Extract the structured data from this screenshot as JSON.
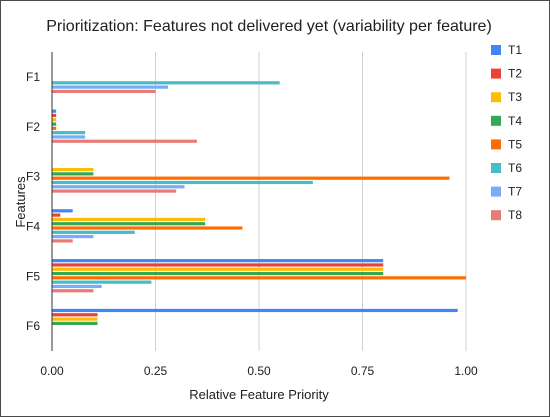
{
  "chart_data": {
    "type": "bar",
    "orientation": "horizontal",
    "title": "Prioritization: Features not delivered yet (variability per feature)",
    "xlabel": "Relative Feature Priority",
    "ylabel": "Features",
    "xlim": [
      0,
      1.0
    ],
    "xticks": [
      "0.00",
      "0.25",
      "0.50",
      "0.75",
      "1.00"
    ],
    "grid": "vertical",
    "legend_position": "right",
    "categories": [
      "F1",
      "F2",
      "F3",
      "F4",
      "F5",
      "F6"
    ],
    "series": [
      {
        "name": "T1",
        "color": "#4285F4",
        "values": [
          0,
          0.01,
          0,
          0.05,
          0.8,
          0.98
        ]
      },
      {
        "name": "T2",
        "color": "#EA4335",
        "values": [
          0,
          0.01,
          0,
          0.02,
          0.8,
          0.11
        ]
      },
      {
        "name": "T3",
        "color": "#FBBC04",
        "values": [
          0,
          0.01,
          0.1,
          0.37,
          0.8,
          0.11
        ]
      },
      {
        "name": "T4",
        "color": "#34A853",
        "values": [
          0,
          0.01,
          0.1,
          0.37,
          0.8,
          0.11
        ]
      },
      {
        "name": "T5",
        "color": "#FF6D01",
        "values": [
          0,
          0.01,
          0.96,
          0.46,
          1.0,
          0
        ]
      },
      {
        "name": "T6",
        "color": "#46BDC6",
        "values": [
          0.55,
          0.08,
          0.63,
          0.2,
          0.24,
          0
        ]
      },
      {
        "name": "T7",
        "color": "#7BAAF7",
        "values": [
          0.28,
          0.08,
          0.32,
          0.1,
          0.12,
          0
        ]
      },
      {
        "name": "T8",
        "color": "#E67C73",
        "values": [
          0.25,
          0.35,
          0.3,
          0.05,
          0.1,
          0
        ]
      }
    ]
  }
}
